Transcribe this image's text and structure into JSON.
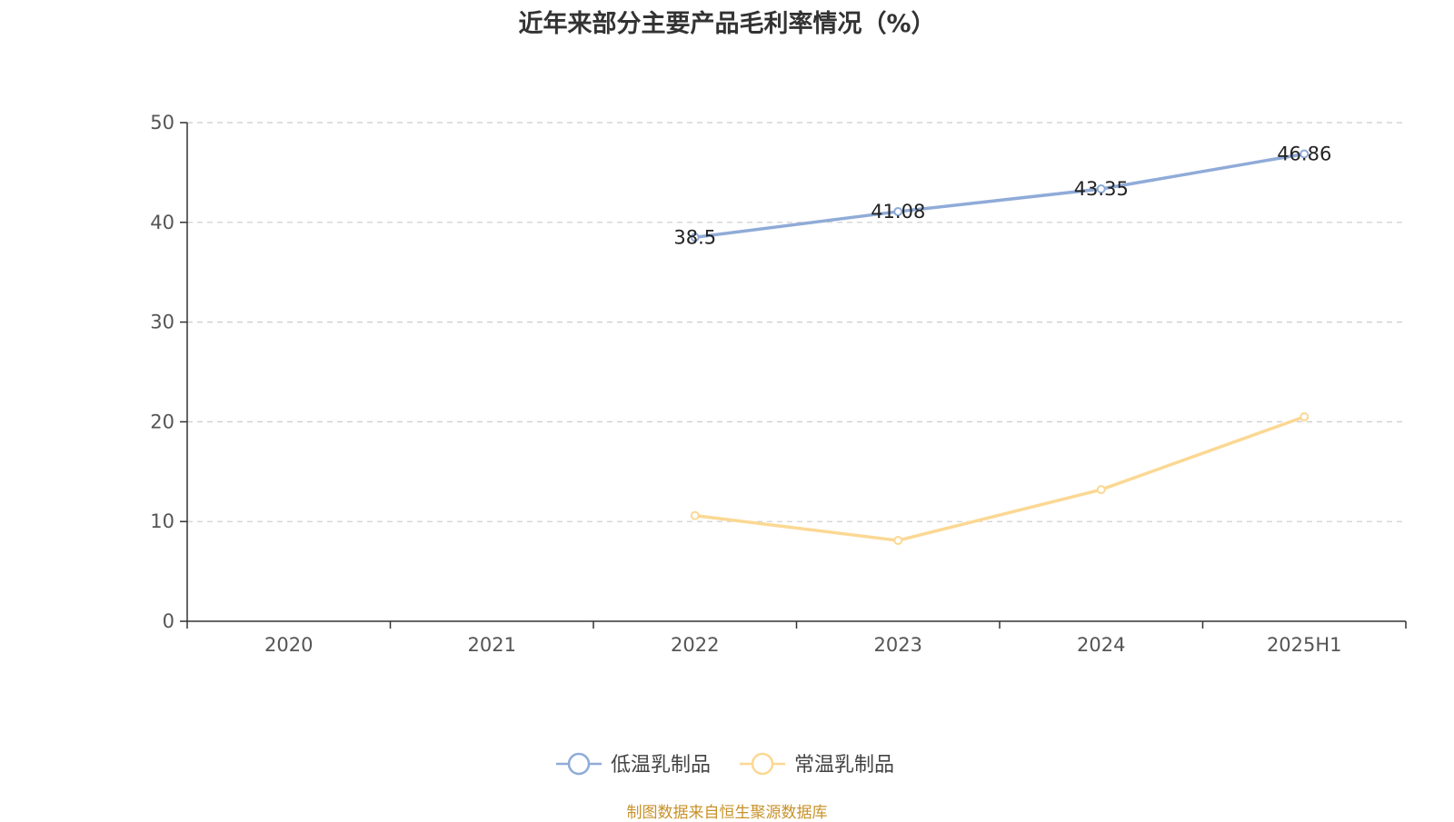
{
  "chart_data": {
    "type": "line",
    "title": "近年来部分主要产品毛利率情况（%）",
    "categories": [
      "2020",
      "2021",
      "2022",
      "2023",
      "2024",
      "2025H1"
    ],
    "series": [
      {
        "name": "低温乳制品",
        "values": [
          null,
          null,
          38.5,
          41.08,
          43.35,
          46.86
        ],
        "color": "#8fabd8",
        "labels": [
          null,
          null,
          "38.5",
          "41.08",
          "43.35",
          "46.86"
        ]
      },
      {
        "name": "常温乳制品",
        "values": [
          null,
          null,
          10.6,
          8.1,
          13.2,
          20.5
        ],
        "color": "#fbd893"
      }
    ],
    "yticks": [
      "0",
      "10",
      "20",
      "30",
      "40",
      "50"
    ],
    "ylim": [
      0,
      50
    ],
    "grid": true,
    "legend_position": "bottom"
  },
  "source_note": "制图数据来自恒生聚源数据库"
}
